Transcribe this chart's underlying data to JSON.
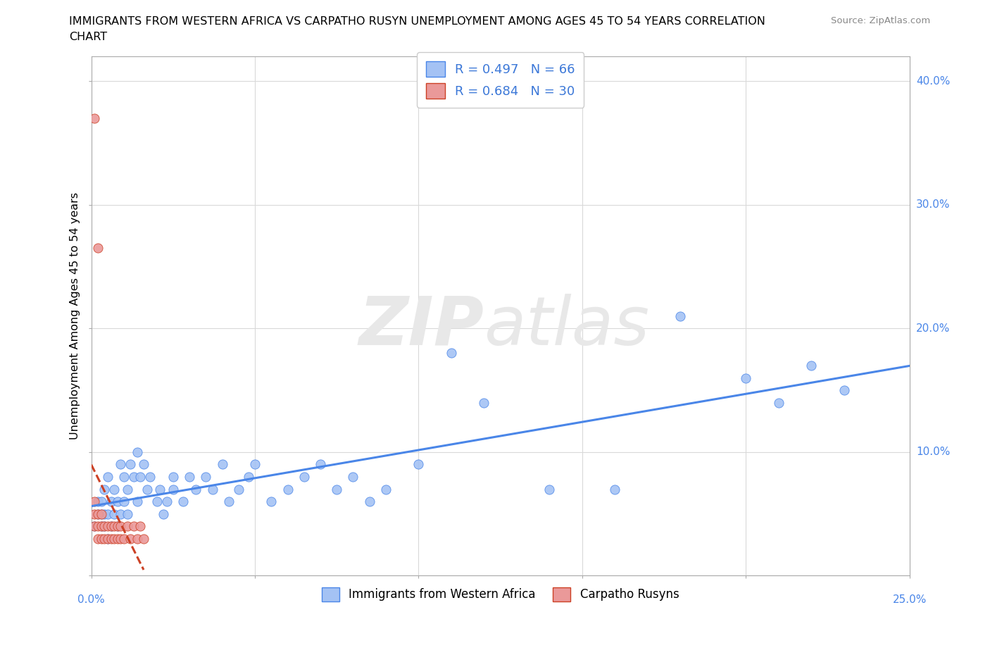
{
  "title_line1": "IMMIGRANTS FROM WESTERN AFRICA VS CARPATHO RUSYN UNEMPLOYMENT AMONG AGES 45 TO 54 YEARS CORRELATION",
  "title_line2": "CHART",
  "source": "Source: ZipAtlas.com",
  "ylabel": "Unemployment Among Ages 45 to 54 years",
  "xlim": [
    0.0,
    0.25
  ],
  "ylim": [
    0.0,
    0.42
  ],
  "blue_color": "#a4c2f4",
  "blue_edge_color": "#4a86e8",
  "pink_color": "#ea9999",
  "pink_edge_color": "#cc4125",
  "blue_line_color": "#4a86e8",
  "pink_line_color": "#cc4125",
  "legend_text_color": "#3c78d8",
  "legend1_r": "0.497",
  "legend1_n": "66",
  "legend2_r": "0.684",
  "legend2_n": "30",
  "watermark_color": "#e8e8e8",
  "grid_color": "#d9d9d9",
  "bottom_legend_labels": [
    "Immigrants from Western Africa",
    "Carpatho Rusyns"
  ],
  "title_fontsize": 11.5,
  "legend_fontsize": 13,
  "tick_label_color": "#4a86e8",
  "blue_scatter_x": [
    0.001,
    0.002,
    0.002,
    0.003,
    0.003,
    0.003,
    0.004,
    0.004,
    0.004,
    0.005,
    0.005,
    0.005,
    0.006,
    0.006,
    0.007,
    0.007,
    0.008,
    0.008,
    0.009,
    0.009,
    0.01,
    0.01,
    0.011,
    0.011,
    0.012,
    0.013,
    0.014,
    0.014,
    0.015,
    0.016,
    0.017,
    0.018,
    0.02,
    0.021,
    0.022,
    0.023,
    0.025,
    0.025,
    0.028,
    0.03,
    0.032,
    0.035,
    0.037,
    0.04,
    0.042,
    0.045,
    0.048,
    0.05,
    0.055,
    0.06,
    0.065,
    0.07,
    0.075,
    0.08,
    0.085,
    0.09,
    0.1,
    0.11,
    0.12,
    0.14,
    0.16,
    0.18,
    0.2,
    0.21,
    0.22,
    0.23
  ],
  "blue_scatter_y": [
    0.04,
    0.05,
    0.06,
    0.04,
    0.05,
    0.06,
    0.04,
    0.05,
    0.07,
    0.03,
    0.05,
    0.08,
    0.04,
    0.06,
    0.05,
    0.07,
    0.04,
    0.06,
    0.05,
    0.09,
    0.06,
    0.08,
    0.05,
    0.07,
    0.09,
    0.08,
    0.06,
    0.1,
    0.08,
    0.09,
    0.07,
    0.08,
    0.06,
    0.07,
    0.05,
    0.06,
    0.07,
    0.08,
    0.06,
    0.08,
    0.07,
    0.08,
    0.07,
    0.09,
    0.06,
    0.07,
    0.08,
    0.09,
    0.06,
    0.07,
    0.08,
    0.09,
    0.07,
    0.08,
    0.06,
    0.07,
    0.09,
    0.18,
    0.14,
    0.07,
    0.07,
    0.21,
    0.16,
    0.14,
    0.17,
    0.15
  ],
  "pink_scatter_x": [
    0.001,
    0.001,
    0.001,
    0.001,
    0.002,
    0.002,
    0.002,
    0.002,
    0.003,
    0.003,
    0.003,
    0.004,
    0.004,
    0.005,
    0.005,
    0.006,
    0.006,
    0.007,
    0.007,
    0.008,
    0.008,
    0.009,
    0.009,
    0.01,
    0.011,
    0.012,
    0.013,
    0.014,
    0.015,
    0.016
  ],
  "pink_scatter_y": [
    0.04,
    0.05,
    0.06,
    0.37,
    0.03,
    0.04,
    0.05,
    0.265,
    0.03,
    0.04,
    0.05,
    0.03,
    0.04,
    0.03,
    0.04,
    0.03,
    0.04,
    0.03,
    0.04,
    0.03,
    0.04,
    0.03,
    0.04,
    0.03,
    0.04,
    0.03,
    0.04,
    0.03,
    0.04,
    0.03
  ],
  "blue_trend_x": [
    0.0,
    0.25
  ],
  "blue_trend_y": [
    0.05,
    0.165
  ],
  "pink_trend_x": [
    0.0,
    0.016
  ],
  "pink_trend_y_start": 0.0,
  "pink_trend_slope": 28.0
}
